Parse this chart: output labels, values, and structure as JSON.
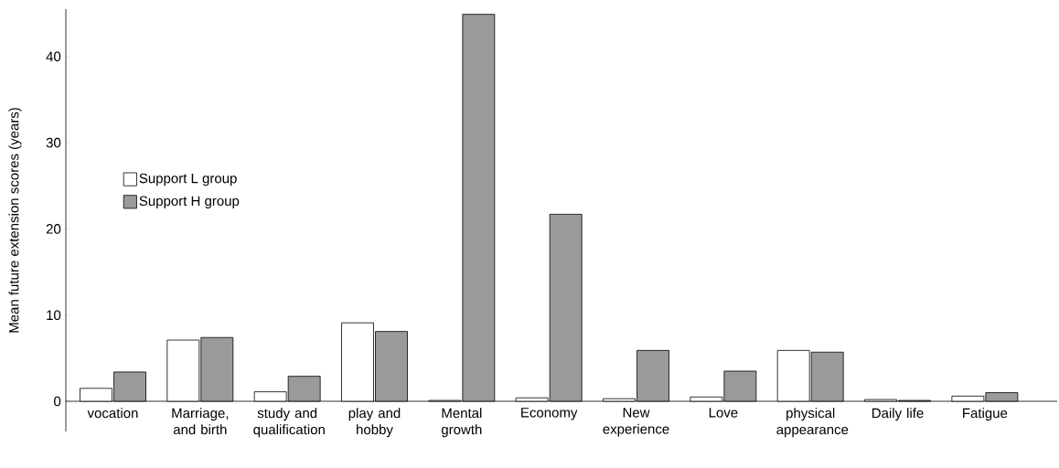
{
  "chart_data": {
    "type": "bar",
    "ylabel": "Mean future extension scores  (years)",
    "categories": [
      "vocation",
      "Marriage, and birth",
      "study and qualification",
      "play and hobby",
      "Mental growth",
      "Economy",
      "New experience",
      "Love",
      "physical appearance",
      "Daily life",
      "Fatigue"
    ],
    "series": [
      {
        "name": "Support L group",
        "color": "#ffffff",
        "values": [
          1.5,
          7.1,
          1.1,
          9.1,
          0.1,
          0.4,
          0.3,
          0.5,
          5.9,
          0.2,
          0.6
        ]
      },
      {
        "name": "Support H group",
        "color": "#9a9a9a",
        "values": [
          3.4,
          7.4,
          2.9,
          8.1,
          44.9,
          21.7,
          5.9,
          3.5,
          5.7,
          0.1,
          1.0
        ]
      }
    ],
    "ylim": [
      -3.5,
      45.5
    ],
    "yticks": [
      0,
      10,
      20,
      30,
      40
    ],
    "legend": "top left",
    "grid": false
  }
}
